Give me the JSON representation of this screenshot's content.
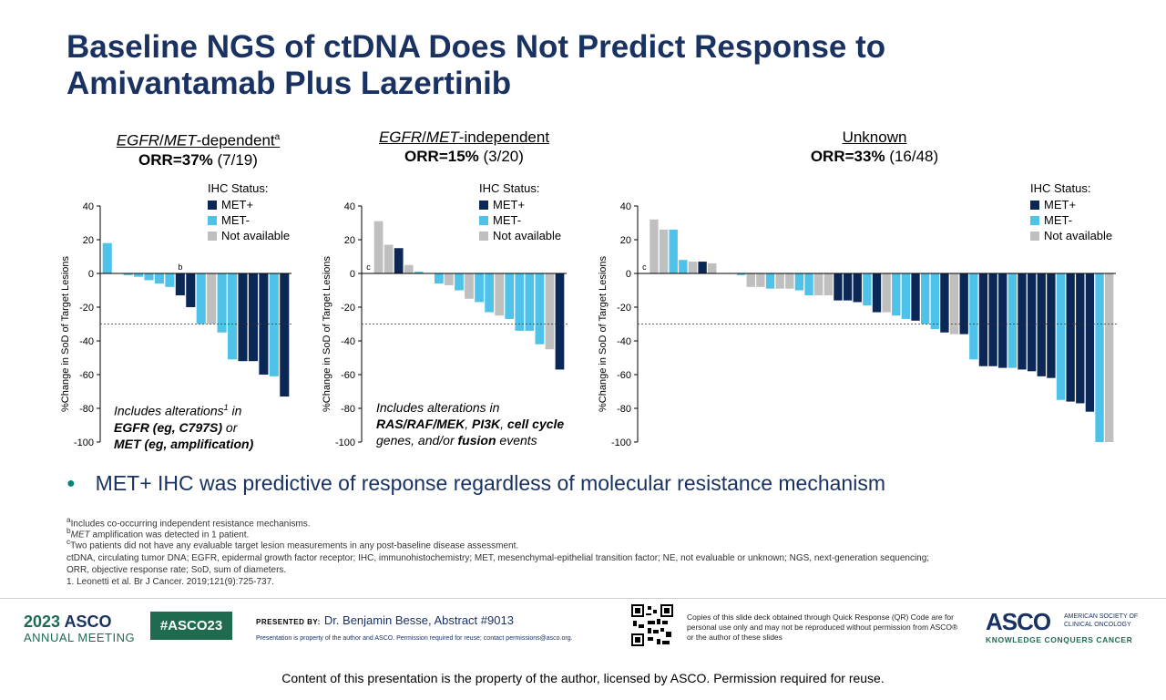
{
  "title": "Baseline NGS of ctDNA Does Not Predict Response to Amivantamab Plus Lazertinib",
  "legend": {
    "heading": "IHC Status:",
    "items": [
      {
        "label": "MET+",
        "color": "#0b2756"
      },
      {
        "label": "MET-",
        "color": "#4ec2e8"
      },
      {
        "label": "Not available",
        "color": "#bfbfbf"
      }
    ]
  },
  "ylabel": "%Change in SoD of Target Lesions",
  "chart_data": [
    {
      "type": "bar",
      "title_italic": "EGFR",
      "title_sep": "/",
      "title_italic2": "MET",
      "title_rest": "-dependent",
      "title_sup": "a",
      "orr_label": "ORR=37%",
      "orr_count": "(7/19)",
      "ylim": [
        -100,
        40
      ],
      "yticks": [
        40,
        20,
        0,
        -20,
        -40,
        -60,
        -80,
        -100
      ],
      "threshold": -30,
      "values": [
        18,
        0,
        -1,
        -2,
        -4,
        -6,
        -8,
        -13,
        -20,
        -30,
        -30,
        -35,
        -51,
        -52,
        -52,
        -60,
        -61,
        -73
      ],
      "colors": [
        "m",
        "m",
        "m",
        "m",
        "m",
        "m",
        "m",
        "p",
        "p",
        "m",
        "g",
        "m",
        "m",
        "p",
        "p",
        "p",
        "m",
        "p"
      ],
      "marks": [
        {
          "text": "b",
          "index": 7
        }
      ],
      "note": [
        "Includes alterations",
        "1",
        " in",
        "EGFR (eg, C797S)",
        " or",
        "MET (eg, amplification)"
      ]
    },
    {
      "type": "bar",
      "title_italic": "EGFR",
      "title_sep": "/",
      "title_italic2": "MET",
      "title_rest": "-independent",
      "title_sup": "",
      "orr_label": "ORR=15%",
      "orr_count": "(3/20)",
      "ylim": [
        -100,
        40
      ],
      "yticks": [
        40,
        20,
        0,
        -20,
        -40,
        -60,
        -80,
        -100
      ],
      "threshold": -30,
      "values": [
        0,
        31,
        17,
        15,
        5,
        1,
        0,
        -6,
        -7,
        -10,
        -15,
        -17,
        -23,
        -25,
        -27,
        -34,
        -34,
        -42,
        -45,
        -57
      ],
      "colors": [
        "g",
        "g",
        "g",
        "p",
        "g",
        "m",
        "g",
        "m",
        "g",
        "m",
        "g",
        "m",
        "m",
        "g",
        "m",
        "m",
        "m",
        "m",
        "g",
        "p"
      ],
      "marks": [
        {
          "text": "c",
          "index": 0
        }
      ],
      "note": [
        "Includes alterations in",
        "RAS/RAF/MEK",
        ", ",
        "PI3K",
        ", ",
        "cell cycle",
        "genes, and/or ",
        "fusion",
        " events"
      ]
    },
    {
      "type": "bar",
      "title_italic": "",
      "title_sep": "",
      "title_italic2": "",
      "title_rest": "Unknown",
      "title_sup": "",
      "orr_label": "ORR=33%",
      "orr_count": "(16/48)",
      "ylim": [
        -100,
        40
      ],
      "yticks": [
        40,
        20,
        0,
        -20,
        -40,
        -60,
        -80,
        -100
      ],
      "threshold": -30,
      "values": [
        0,
        32,
        26,
        26,
        8,
        7,
        7,
        6,
        0,
        0,
        -1,
        -8,
        -8,
        -9,
        -9,
        -9,
        -10,
        -13,
        -13,
        -13,
        -16,
        -16,
        -17,
        -19,
        -23,
        -23,
        -25,
        -27,
        -28,
        -30,
        -33,
        -35,
        -36,
        -36,
        -51,
        -55,
        -55,
        -56,
        -56,
        -57,
        -58,
        -61,
        -62,
        -75,
        -76,
        -77,
        -82,
        -100,
        -100
      ],
      "colors": [
        "g",
        "g",
        "g",
        "m",
        "m",
        "g",
        "p",
        "g",
        "g",
        "g",
        "m",
        "g",
        "g",
        "m",
        "g",
        "g",
        "m",
        "m",
        "g",
        "g",
        "p",
        "p",
        "p",
        "m",
        "p",
        "g",
        "m",
        "m",
        "p",
        "m",
        "m",
        "p",
        "g",
        "p",
        "m",
        "p",
        "p",
        "p",
        "m",
        "p",
        "p",
        "p",
        "p",
        "m",
        "p",
        "p",
        "p",
        "m",
        "g"
      ],
      "marks": [
        {
          "text": "c",
          "index": 0
        }
      ],
      "note": []
    }
  ],
  "bullet": "MET+ IHC was predictive of response regardless of molecular resistance mechanism",
  "footnotes": {
    "a_sup": "a",
    "a": "Includes co-occurring independent resistance mechanisms.",
    "b_sup": "b",
    "b_it": "MET",
    "b": " amplification was detected in 1 patient.",
    "c_sup": "c",
    "c": "Two patients did not have any evaluable target lesion measurements in any post-baseline disease assessment.",
    "abbr1": "ctDNA, circulating tumor DNA; EGFR, epidermal growth factor receptor; IHC, immunohistochemistry; MET, mesenchymal-epithelial transition factor; NE, not evaluable or unknown; NGS, next-generation sequencing;",
    "abbr2": "ORR, objective response rate; SoD, sum of diameters.",
    "ref": "1. Leonetti et al. Br J Cancer. 2019;121(9):725-737."
  },
  "footer": {
    "year": "2023",
    "asco": "ASCO",
    "annual": "ANNUAL MEETING",
    "hashtag": "#ASCO23",
    "presented_by": "PRESENTED BY:",
    "presenter": "Dr. Benjamin Besse, Abstract #9013",
    "property": "Presentation is property of the author and ASCO. Permission required for reuse; contact permissions@asco.org.",
    "qr_text": "Copies of this slide deck obtained through Quick Response (QR) Code are for personal use only and may not be reproduced without permission from ASCO® or the author of these slides",
    "logo": "ASCO",
    "logo_sub": "AMERICAN SOCIETY OF CLINICAL ONCOLOGY",
    "logo_tag": "KNOWLEDGE CONQUERS CANCER"
  },
  "bottom_notice": "Content of this presentation is the property of the author, licensed by ASCO. Permission required for reuse."
}
